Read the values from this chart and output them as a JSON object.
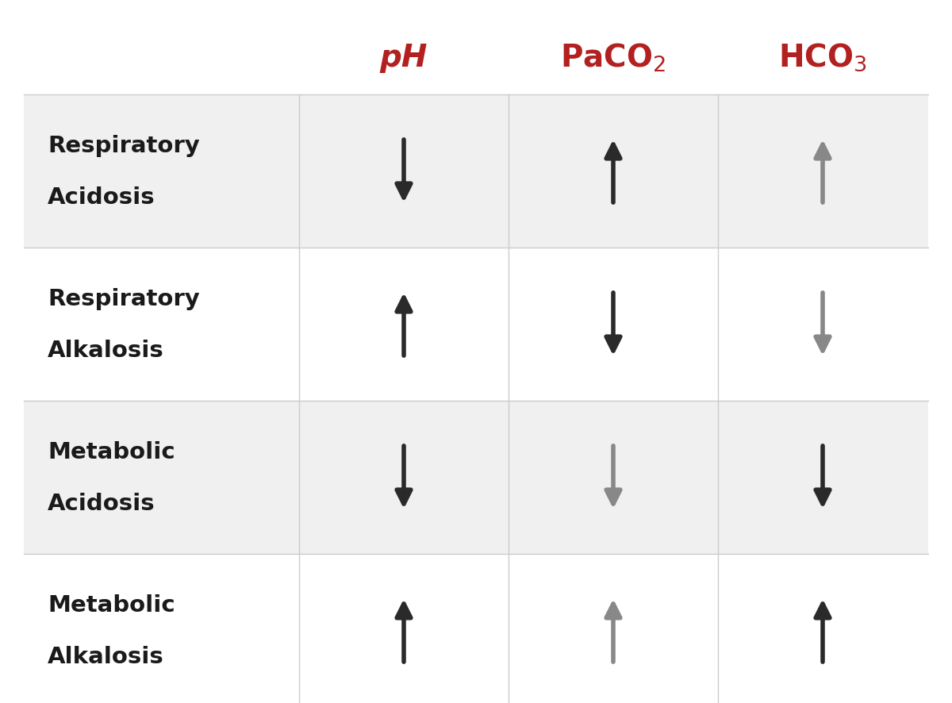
{
  "background_color": "#ffffff",
  "header_bg": "#ffffff",
  "row_bg_odd": "#f0f0f0",
  "row_bg_even": "#ffffff",
  "header_color": "#b22020",
  "dark_arrow": "#2a2a2a",
  "gray_arrow": "#888888",
  "label_color": "#1a1a1a",
  "row_labels": [
    [
      "Respiratory",
      "Acidosis"
    ],
    [
      "Respiratory",
      "Alkalosis"
    ],
    [
      "Metabolic",
      "Acidosis"
    ],
    [
      "Metabolic",
      "Alkalosis"
    ]
  ],
  "arrows": [
    [
      {
        "direction": "down",
        "color": "#2a2a2a"
      },
      {
        "direction": "up",
        "color": "#2a2a2a"
      },
      {
        "direction": "up",
        "color": "#888888"
      }
    ],
    [
      {
        "direction": "up",
        "color": "#2a2a2a"
      },
      {
        "direction": "down",
        "color": "#2a2a2a"
      },
      {
        "direction": "down",
        "color": "#888888"
      }
    ],
    [
      {
        "direction": "down",
        "color": "#2a2a2a"
      },
      {
        "direction": "down",
        "color": "#888888"
      },
      {
        "direction": "down",
        "color": "#2a2a2a"
      }
    ],
    [
      {
        "direction": "up",
        "color": "#2a2a2a"
      },
      {
        "direction": "up",
        "color": "#888888"
      },
      {
        "direction": "up",
        "color": "#2a2a2a"
      }
    ]
  ],
  "label_fontsize": 21,
  "header_fontsize": 28,
  "separator_color": "#cccccc",
  "separator_lw": 1.0
}
